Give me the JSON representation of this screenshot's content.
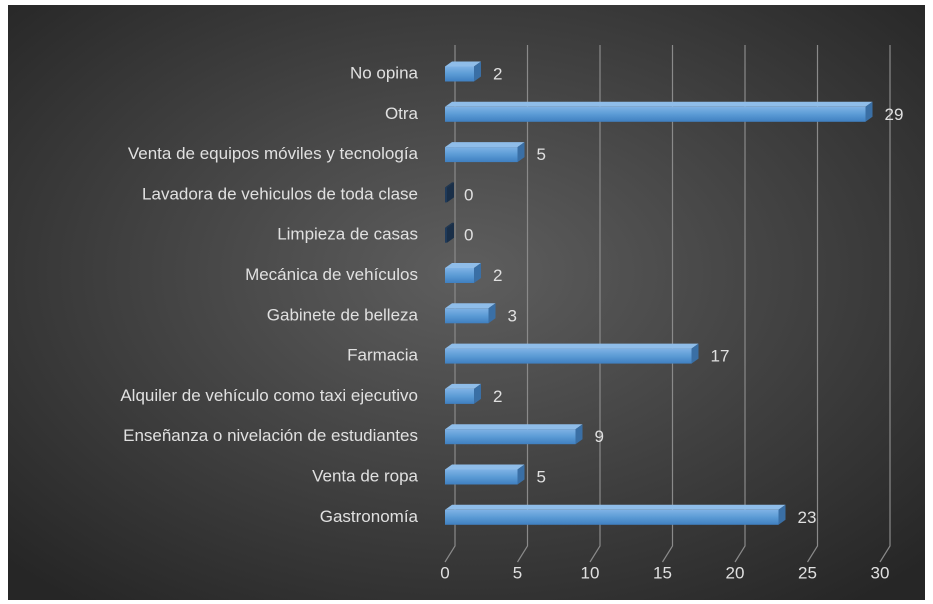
{
  "chart_data": {
    "type": "bar",
    "orientation": "horizontal",
    "categories": [
      "No opina",
      "Otra",
      "Venta de equipos móviles y tecnología",
      "Lavadora de vehiculos de toda clase",
      "Limpieza de casas",
      "Mecánica de vehículos",
      "Gabinete de belleza",
      "Farmacia",
      "Alquiler de vehículo como taxi ejecutivo",
      "Enseñanza o nivelación de estudiantes",
      "Venta de ropa",
      "Gastronomía"
    ],
    "values": [
      2,
      29,
      5,
      0,
      0,
      2,
      3,
      17,
      2,
      9,
      5,
      23
    ],
    "color": "#5b9bd5",
    "xlim": [
      0,
      30
    ],
    "xticks": [
      0,
      5,
      10,
      15,
      20,
      25,
      30
    ],
    "grid": true
  }
}
